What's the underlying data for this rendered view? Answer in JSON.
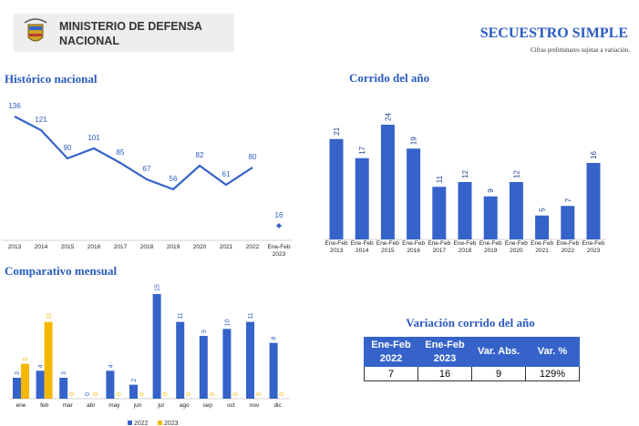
{
  "header": {
    "organization": "MINISTERIO DE DEFENSA NACIONAL",
    "title": "SECUESTRO SIMPLE",
    "subtitle": "Cifras preliminares sujetas a variación."
  },
  "chart_data": [
    {
      "type": "line",
      "title": "Histórico nacional",
      "categories": [
        "2013",
        "2014",
        "2015",
        "2016",
        "2017",
        "2018",
        "2019",
        "2020",
        "2021",
        "2022",
        "Ene-Feb\n2023"
      ],
      "values": [
        136,
        121,
        90,
        101,
        85,
        67,
        56,
        82,
        61,
        80,
        16
      ],
      "detached_last": true,
      "color": "#3563c9",
      "ylim": [
        0,
        150
      ]
    },
    {
      "type": "bar",
      "title": "Corrido del año",
      "categories": [
        "Ene-Feb\n2013",
        "Ene-Feb\n2014",
        "Ene-Feb\n2015",
        "Ene-Feb\n2016",
        "Ene-Feb\n2017",
        "Ene-Feb\n2018",
        "Ene-Feb\n2019",
        "Ene-Feb\n2020",
        "Ene-Feb\n2021",
        "Ene-Feb\n2022",
        "Ene-Feb\n2023"
      ],
      "values": [
        21,
        17,
        24,
        19,
        11,
        12,
        9,
        12,
        5,
        7,
        16
      ],
      "color": "#3563c9",
      "ylim": [
        0,
        27
      ]
    },
    {
      "type": "grouped_bar",
      "title": "Comparativo mensual",
      "categories": [
        "ene",
        "feb",
        "mar",
        "abr",
        "may",
        "jun",
        "jul",
        "ago",
        "sep",
        "oct",
        "nov",
        "dic"
      ],
      "series": [
        {
          "name": "2022",
          "color": "#3563c9",
          "values": [
            3,
            4,
            3,
            0,
            4,
            2,
            15,
            11,
            9,
            10,
            11,
            8
          ]
        },
        {
          "name": "2023",
          "color": "#f5b800",
          "values": [
            5,
            11,
            0,
            0,
            0,
            0,
            0,
            0,
            0,
            0,
            0,
            0
          ]
        }
      ],
      "ylim": [
        0,
        16
      ],
      "legend": "bottom"
    }
  ],
  "table": {
    "title": "Variación corrido del año",
    "headers": [
      "Ene-Feb\n2022",
      "Ene-Feb\n2023",
      "Var. Abs.",
      "Var. %"
    ],
    "rows": [
      [
        7,
        16,
        9,
        "129%"
      ]
    ]
  }
}
